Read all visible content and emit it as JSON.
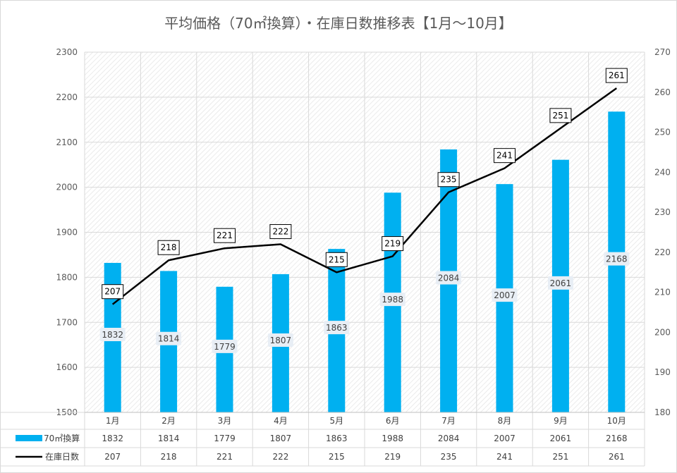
{
  "chart_data": {
    "type": "bar+line",
    "title": "平均価格（70㎡換算）・在庫日数推移表【1月～10月】",
    "categories": [
      "1月",
      "2月",
      "3月",
      "4月",
      "5月",
      "6月",
      "7月",
      "8月",
      "9月",
      "10月"
    ],
    "series": [
      {
        "name": "70㎡換算",
        "type": "bar",
        "axis": "left",
        "color": "#00b0f0",
        "values": [
          1832,
          1814,
          1779,
          1807,
          1863,
          1988,
          2084,
          2007,
          2061,
          2168
        ]
      },
      {
        "name": "在庫日数",
        "type": "line",
        "axis": "right",
        "color": "#000000",
        "values": [
          207,
          218,
          221,
          222,
          215,
          219,
          235,
          241,
          251,
          261
        ]
      }
    ],
    "y_left": {
      "min": 1500,
      "max": 2300,
      "ticks": [
        "1500",
        "1600",
        "1700",
        "1800",
        "1900",
        "2000",
        "2100",
        "2200",
        "2300"
      ]
    },
    "y_right": {
      "min": 180,
      "max": 270,
      "ticks": [
        "180",
        "190",
        "200",
        "210",
        "220",
        "230",
        "240",
        "250",
        "260",
        "270"
      ]
    },
    "grid": true,
    "legend": "data-table-below"
  }
}
